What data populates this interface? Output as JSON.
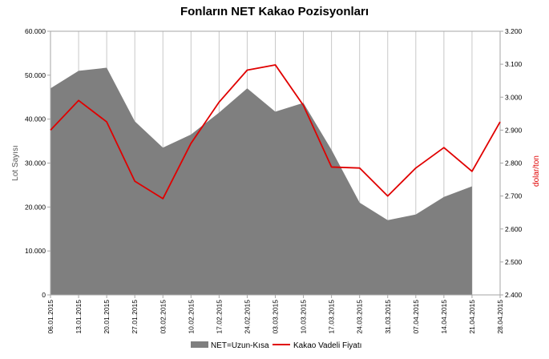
{
  "chart_data": {
    "type": "area",
    "title": "Fonların NET Kakao Pozisyonları",
    "x": [
      "06.01.2015",
      "13.01.2015",
      "20.01.2015",
      "27.01.2015",
      "03.02.2015",
      "10.02.2015",
      "17.02.2015",
      "24.02.2015",
      "03.03.2015",
      "10.03.2015",
      "17.03.2015",
      "24.03.2015",
      "31.03.2015",
      "07.04.2015",
      "14.04.2015",
      "21.04.2015",
      "28.04.2015"
    ],
    "ylabel": "Lot Sayısı",
    "ylabel_right": "dolar/ton",
    "ylim": [
      0,
      60000
    ],
    "ylim_right": [
      2400,
      3200
    ],
    "yticks": [
      "0",
      "10.000",
      "20.000",
      "30.000",
      "40.000",
      "50.000",
      "60.000"
    ],
    "yticks_right": [
      "2.400",
      "2.500",
      "2.600",
      "2.700",
      "2.800",
      "2.900",
      "3.000",
      "3.100",
      "3.200"
    ],
    "grid": "vertical",
    "legend_position": "bottom",
    "series": [
      {
        "name": "NET=Uzun-Kısa",
        "type": "area",
        "axis": "left",
        "color": "#7f7f7f",
        "values": [
          47000,
          51000,
          51700,
          39500,
          33500,
          36500,
          41500,
          47000,
          41700,
          43700,
          33000,
          21000,
          17000,
          18300,
          22300,
          24700,
          null
        ]
      },
      {
        "name": "Kakao Vadeli Fiyatı",
        "type": "line",
        "axis": "right",
        "color": "#e00000",
        "values": [
          2900,
          2990,
          2925,
          2745,
          2692,
          2860,
          2985,
          3082,
          3098,
          2975,
          2788,
          2785,
          2700,
          2785,
          2847,
          2775,
          2925
        ]
      }
    ]
  }
}
